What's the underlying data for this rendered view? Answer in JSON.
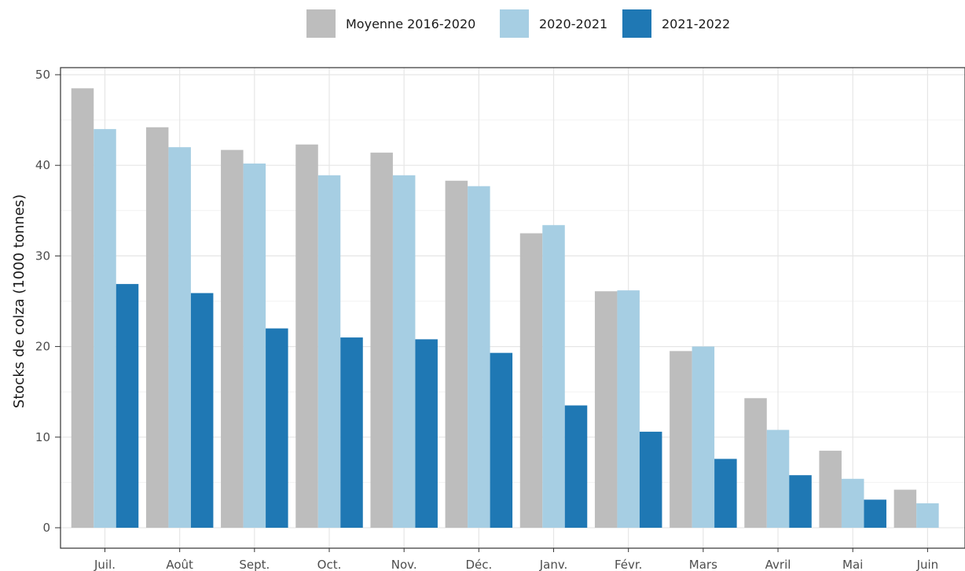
{
  "chart_data": {
    "type": "bar",
    "ylabel": "Stocks de colza (1000 tonnes)",
    "ylim": [
      0,
      50
    ],
    "yticks": [
      0,
      10,
      20,
      30,
      40,
      50
    ],
    "grid": true,
    "legend_position": "top",
    "categories": [
      "Juil.",
      "Août",
      "Sept.",
      "Oct.",
      "Nov.",
      "Déc.",
      "Janv.",
      "Févr.",
      "Mars",
      "Avril",
      "Mai",
      "Juin"
    ],
    "series": [
      {
        "name": "Moyenne 2016-2020",
        "color": "#bdbdbd",
        "values": [
          48.5,
          44.2,
          41.7,
          42.3,
          41.4,
          38.3,
          32.5,
          26.1,
          19.5,
          14.3,
          8.5,
          4.2
        ]
      },
      {
        "name": "2020-2021",
        "color": "#a6cee3",
        "values": [
          44.0,
          42.0,
          40.2,
          38.9,
          38.9,
          37.7,
          33.4,
          26.2,
          20.0,
          10.8,
          5.4,
          2.7
        ]
      },
      {
        "name": "2021-2022",
        "color": "#1f78b4",
        "values": [
          26.9,
          25.9,
          22.0,
          21.0,
          20.8,
          19.3,
          13.5,
          10.6,
          7.6,
          5.8,
          3.1,
          null
        ]
      }
    ]
  }
}
